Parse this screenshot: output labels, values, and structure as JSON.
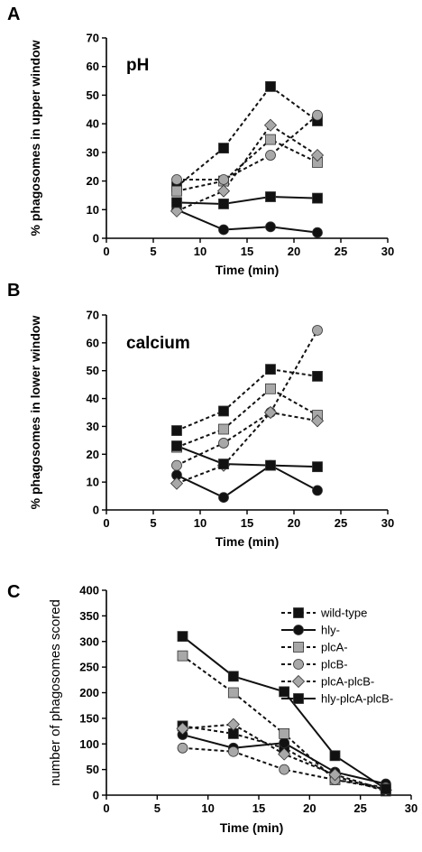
{
  "panel_letters": [
    "A",
    "B",
    "C"
  ],
  "legend": {
    "entries": [
      {
        "label": "wild-type",
        "dash": true,
        "marker": "square",
        "fill": "#111111"
      },
      {
        "label": "hly-",
        "dash": false,
        "marker": "circle",
        "fill": "#111111"
      },
      {
        "label": "plcA-",
        "dash": true,
        "marker": "square",
        "fill": "#a8a8a8"
      },
      {
        "label": "plcB-",
        "dash": true,
        "marker": "circle",
        "fill": "#a8a8a8"
      },
      {
        "label": "plcA-plcB-",
        "dash": true,
        "marker": "diamond",
        "fill": "#a8a8a8"
      },
      {
        "label": "hly-plcA-plcB-",
        "dash": false,
        "marker": "square",
        "fill": "#111111"
      }
    ]
  },
  "chart_data": [
    {
      "type": "line",
      "title": "pH",
      "xlabel": "Time (min)",
      "ylabel": "% phagosomes in upper window",
      "xlim": [
        0,
        30
      ],
      "ylim": [
        0,
        70
      ],
      "xticks": [
        0,
        5,
        10,
        15,
        20,
        25,
        30
      ],
      "yticks": [
        0,
        10,
        20,
        30,
        40,
        50,
        60,
        70
      ],
      "series": [
        {
          "name": "wild-type",
          "style": "dashed",
          "marker": "square",
          "fill": "#111111",
          "x": [
            7.5,
            12.5,
            17.5,
            22.5
          ],
          "values": [
            18,
            31.5,
            53,
            41
          ]
        },
        {
          "name": "hly-",
          "style": "solid",
          "marker": "circle",
          "fill": "#111111",
          "x": [
            7.5,
            12.5,
            17.5,
            22.5
          ],
          "values": [
            10,
            3,
            4,
            2
          ]
        },
        {
          "name": "plcA-",
          "style": "dashed",
          "marker": "square",
          "fill": "#a8a8a8",
          "x": [
            7.5,
            12.5,
            17.5,
            22.5
          ],
          "values": [
            16.5,
            20,
            34.5,
            26.5
          ]
        },
        {
          "name": "plcB-",
          "style": "dashed",
          "marker": "circle",
          "fill": "#a8a8a8",
          "x": [
            7.5,
            12.5,
            17.5,
            22.5
          ],
          "values": [
            20.5,
            20.5,
            29,
            43
          ]
        },
        {
          "name": "plcA-plcB-",
          "style": "dashed",
          "marker": "diamond",
          "fill": "#a8a8a8",
          "x": [
            7.5,
            12.5,
            17.5,
            22.5
          ],
          "values": [
            9.5,
            16.5,
            39.5,
            29
          ]
        },
        {
          "name": "hly-plcA-plcB-",
          "style": "solid",
          "marker": "square",
          "fill": "#111111",
          "x": [
            7.5,
            12.5,
            17.5,
            22.5
          ],
          "values": [
            12.5,
            12,
            14.5,
            14
          ]
        }
      ]
    },
    {
      "type": "line",
      "title": "calcium",
      "xlabel": "Time (min)",
      "ylabel": "% phagosomes in lower window",
      "xlim": [
        0,
        30
      ],
      "ylim": [
        0,
        70
      ],
      "xticks": [
        0,
        5,
        10,
        15,
        20,
        25,
        30
      ],
      "yticks": [
        0,
        10,
        20,
        30,
        40,
        50,
        60,
        70
      ],
      "series": [
        {
          "name": "wild-type",
          "style": "dashed",
          "marker": "square",
          "fill": "#111111",
          "x": [
            7.5,
            12.5,
            17.5,
            22.5
          ],
          "values": [
            28.5,
            35.5,
            50.5,
            48
          ]
        },
        {
          "name": "hly-",
          "style": "solid",
          "marker": "circle",
          "fill": "#111111",
          "x": [
            7.5,
            12.5,
            17.5,
            22.5
          ],
          "values": [
            12.5,
            4.5,
            16,
            7
          ]
        },
        {
          "name": "plcA-",
          "style": "dashed",
          "marker": "square",
          "fill": "#a8a8a8",
          "x": [
            7.5,
            12.5,
            17.5,
            22.5
          ],
          "values": [
            22.5,
            29,
            43.5,
            34
          ]
        },
        {
          "name": "plcB-",
          "style": "dashed",
          "marker": "circle",
          "fill": "#a8a8a8",
          "x": [
            7.5,
            12.5,
            17.5,
            22.5
          ],
          "values": [
            16,
            24,
            35,
            64.5
          ]
        },
        {
          "name": "plcA-plcB-",
          "style": "dashed",
          "marker": "diamond",
          "fill": "#a8a8a8",
          "x": [
            7.5,
            12.5,
            17.5,
            22.5
          ],
          "values": [
            9.5,
            16,
            35,
            32
          ]
        },
        {
          "name": "hly-plcA-plcB-",
          "style": "solid",
          "marker": "square",
          "fill": "#111111",
          "x": [
            7.5,
            12.5,
            17.5,
            22.5
          ],
          "values": [
            23,
            16.5,
            16,
            15.5
          ]
        }
      ]
    },
    {
      "type": "line",
      "title": "",
      "xlabel": "Time (min)",
      "ylabel": "number of phagosomes scored",
      "xlim": [
        0,
        30
      ],
      "ylim": [
        0,
        400
      ],
      "xticks": [
        0,
        5,
        10,
        15,
        20,
        25,
        30
      ],
      "yticks": [
        0,
        50,
        100,
        150,
        200,
        250,
        300,
        350,
        400
      ],
      "series": [
        {
          "name": "wild-type",
          "style": "dashed",
          "marker": "square",
          "fill": "#111111",
          "x": [
            7.5,
            12.5,
            17.5,
            22.5,
            27.5
          ],
          "values": [
            135,
            120,
            92,
            37,
            8
          ]
        },
        {
          "name": "hly-",
          "style": "solid",
          "marker": "circle",
          "fill": "#111111",
          "x": [
            7.5,
            12.5,
            17.5,
            22.5,
            27.5
          ],
          "values": [
            118,
            92,
            102,
            45,
            22
          ]
        },
        {
          "name": "plcA-",
          "style": "dashed",
          "marker": "square",
          "fill": "#a8a8a8",
          "x": [
            7.5,
            12.5,
            17.5,
            22.5,
            27.5
          ],
          "values": [
            272,
            200,
            120,
            30,
            12
          ]
        },
        {
          "name": "plcB-",
          "style": "dashed",
          "marker": "circle",
          "fill": "#a8a8a8",
          "x": [
            7.5,
            12.5,
            17.5,
            22.5,
            27.5
          ],
          "values": [
            92,
            85,
            50,
            30,
            15
          ]
        },
        {
          "name": "plcA-plcB-",
          "style": "dashed",
          "marker": "diamond",
          "fill": "#a8a8a8",
          "x": [
            7.5,
            12.5,
            17.5,
            22.5,
            27.5
          ],
          "values": [
            130,
            138,
            80,
            40,
            10
          ]
        },
        {
          "name": "hly-plcA-plcB-",
          "style": "solid",
          "marker": "square",
          "fill": "#111111",
          "x": [
            7.5,
            12.5,
            17.5,
            22.5,
            27.5
          ],
          "values": [
            310,
            232,
            202,
            77,
            12
          ]
        }
      ]
    }
  ]
}
